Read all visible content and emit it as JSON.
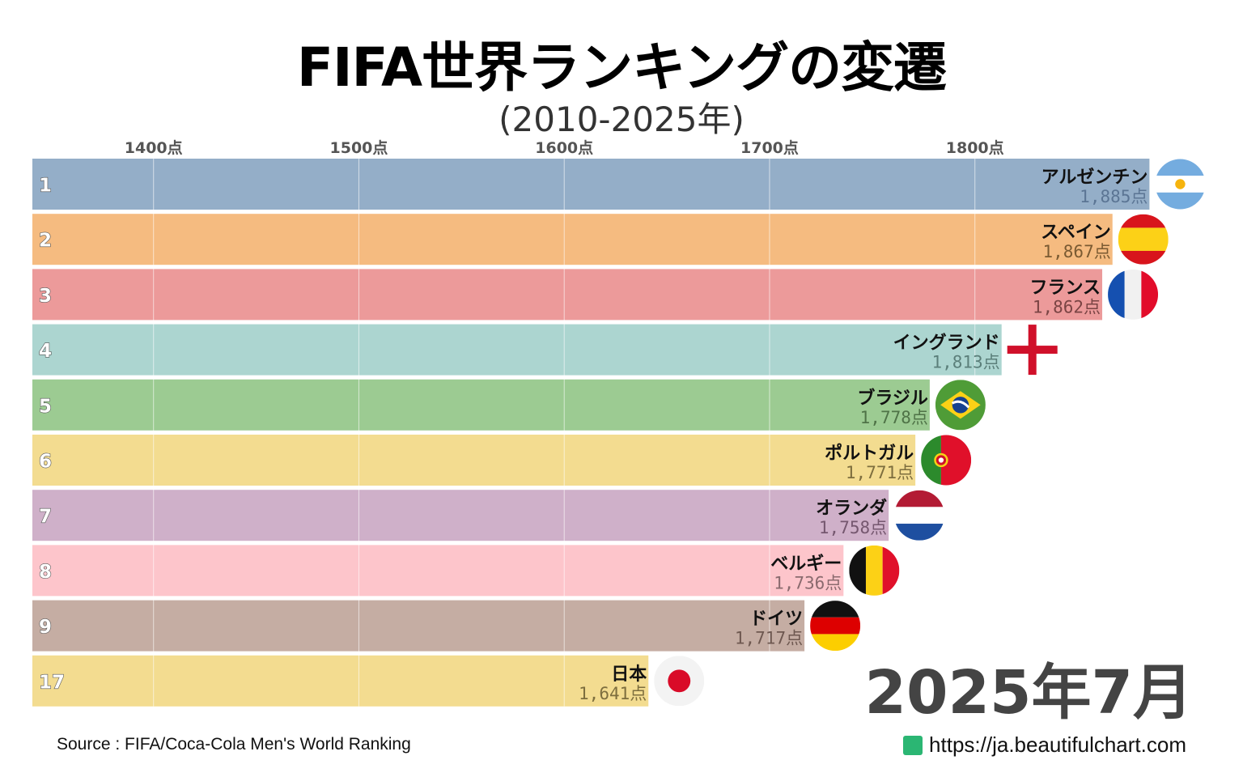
{
  "header": {
    "title": "FIFA世界ランキングの変遷",
    "subtitle": "(2010-2025年)"
  },
  "footer": {
    "source": "Source : FIFA/Coca-Cola Men's World Ranking",
    "site": "https://ja.beautifulchart.com"
  },
  "chart_data": {
    "type": "bar",
    "orientation": "horizontal",
    "date_label": "2025年7月",
    "xlim": [
      1341,
      1900
    ],
    "grid": true,
    "x_ticks": [
      1400,
      1500,
      1600,
      1700,
      1800
    ],
    "x_tick_labels": [
      "1400点",
      "1500点",
      "1600点",
      "1700点",
      "1800点"
    ],
    "categories": [
      "アルゼンチン",
      "スペイン",
      "フランス",
      "イングランド",
      "ブラジル",
      "ポルトガル",
      "オランダ",
      "ベルギー",
      "ドイツ",
      "日本"
    ],
    "ranks": [
      "1",
      "2",
      "3",
      "4",
      "5",
      "6",
      "7",
      "8",
      "9",
      "17"
    ],
    "values": [
      1885,
      1867,
      1862,
      1813,
      1778,
      1771,
      1758,
      1736,
      1717,
      1641
    ],
    "value_labels": [
      "1,885点",
      "1,867点",
      "1,862点",
      "1,813点",
      "1,778点",
      "1,771点",
      "1,758点",
      "1,736点",
      "1,717点",
      "1,641点"
    ],
    "flags": [
      "argentina",
      "spain",
      "france",
      "england",
      "brazil",
      "portugal",
      "netherlands",
      "belgium",
      "germany",
      "japan"
    ],
    "colors": [
      "#94aec8",
      "#f5bb80",
      "#ec9a9a",
      "#acd5d0",
      "#9ccb92",
      "#f3dc90",
      "#cfb0c9",
      "#fdc5cb",
      "#c5ada3",
      "#f3dc90"
    ],
    "label_colors": [
      "#5b7594",
      "#7a5a32",
      "#7a4444",
      "#5b7f7a",
      "#4f7347",
      "#7d6e3e",
      "#75576f",
      "#8a6a6e",
      "#6e5850",
      "#7d6e3e"
    ]
  }
}
